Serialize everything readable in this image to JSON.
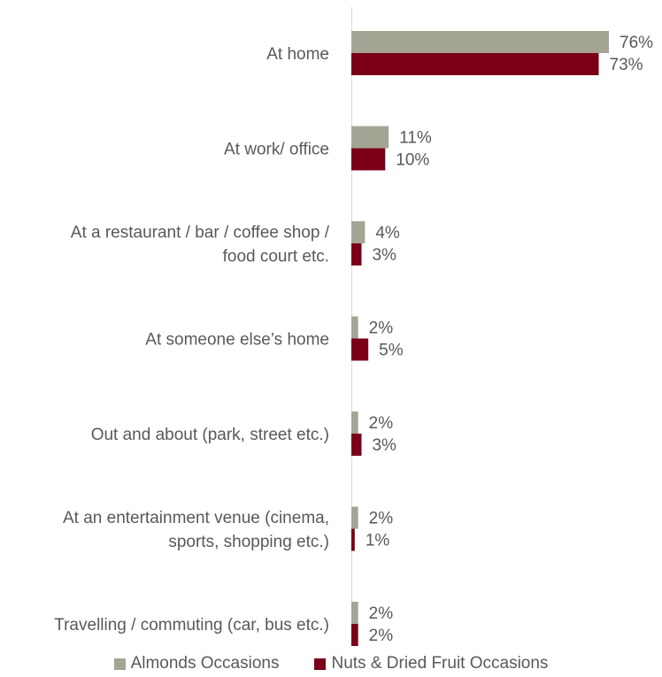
{
  "chart_data": {
    "type": "bar",
    "orientation": "horizontal",
    "categories": [
      [
        "At home"
      ],
      [
        "At work/ office"
      ],
      [
        "At a restaurant / bar / coffee shop /",
        "food court etc."
      ],
      [
        "At someone else’s home"
      ],
      [
        "Out and about (park, street etc.)"
      ],
      [
        "At an entertainment venue (cinema,",
        "sports, shopping etc.)"
      ],
      [
        "Travelling / commuting (car, bus etc.)"
      ]
    ],
    "series": [
      {
        "name": "Almonds Occasions",
        "color": "#a5a596",
        "values": [
          76,
          11,
          4,
          2,
          2,
          2,
          2
        ]
      },
      {
        "name": "Nuts & Dried Fruit Occasions",
        "color": "#7b0017",
        "values": [
          73,
          10,
          3,
          5,
          3,
          1,
          2
        ]
      }
    ],
    "value_suffix": "%",
    "xlim": [
      0,
      80
    ],
    "grid": false,
    "legend": "bottom"
  }
}
